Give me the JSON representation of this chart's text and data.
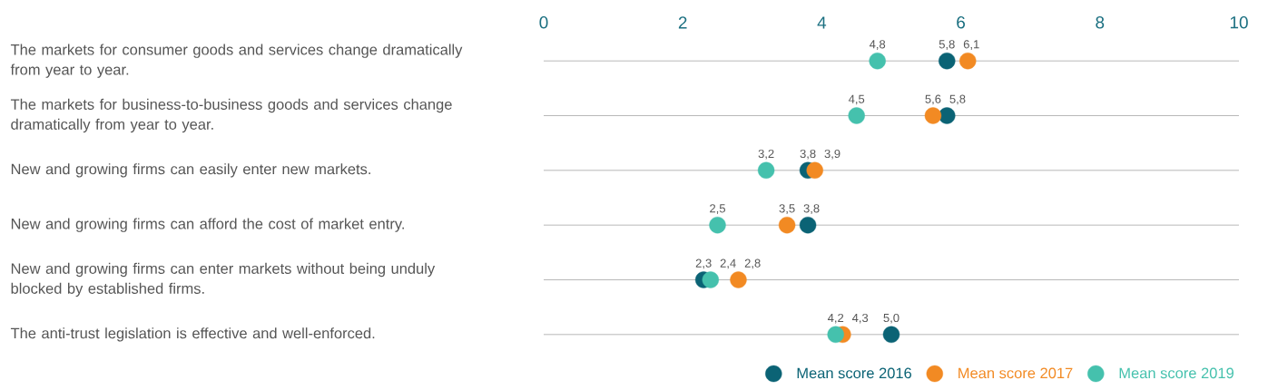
{
  "chart_data": {
    "type": "scatter",
    "orientation": "horizontal",
    "categories": [
      "The markets for consumer goods and services change dramatically from year to year.",
      "The markets for business-to-business goods and services change dramatically from year to year.",
      "New and growing firms can easily enter new markets.",
      "New and growing firms can afford the cost of market entry.",
      "New and growing firms can enter markets without being unduly blocked by established firms.",
      "The anti-trust legislation is effective and well-enforced."
    ],
    "series": [
      {
        "name": "Mean score 2016",
        "color": "#0b6375",
        "values": [
          5.8,
          5.8,
          3.8,
          3.8,
          2.3,
          5.0
        ],
        "value_labels": [
          "5,8",
          "5,8",
          "3,8",
          "3,8",
          "2,3",
          "5,0"
        ]
      },
      {
        "name": "Mean score 2017",
        "color": "#f28a23",
        "values": [
          6.1,
          5.6,
          3.9,
          3.5,
          2.8,
          4.3
        ],
        "value_labels": [
          "6,1",
          "5,6",
          "3,9",
          "3,5",
          "2,8",
          "4,3"
        ]
      },
      {
        "name": "Mean score 2019",
        "color": "#45c1ad",
        "values": [
          4.8,
          4.5,
          3.2,
          2.5,
          2.4,
          4.2
        ],
        "value_labels": [
          "4,8",
          "4,5",
          "3,2",
          "2,5",
          "2,4",
          "4,2"
        ]
      }
    ],
    "xlim": [
      0,
      10
    ],
    "xticks": [
      0,
      2,
      4,
      6,
      8,
      10
    ],
    "grid": "y",
    "legend": "bottom right"
  }
}
